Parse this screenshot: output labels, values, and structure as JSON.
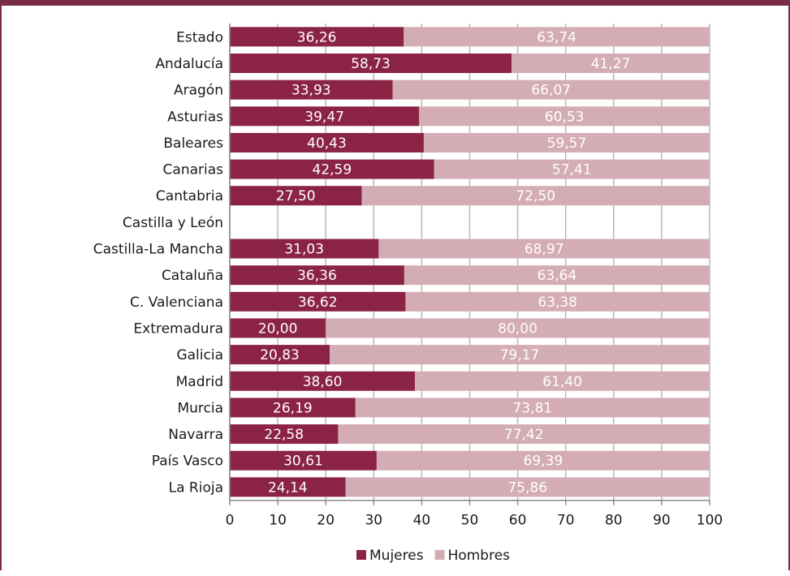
{
  "chart_data": {
    "type": "bar",
    "orientation": "horizontal",
    "stacked": true,
    "categories": [
      "Estado",
      "Andalucía",
      "Aragón",
      "Asturias",
      "Baleares",
      "Canarias",
      "Cantabria",
      "Castilla y León",
      "Castilla-La Mancha",
      "Cataluña",
      "C. Valenciana",
      "Extremadura",
      "Galicia",
      "Madrid",
      "Murcia",
      "Navarra",
      "País Vasco",
      "La Rioja"
    ],
    "series": [
      {
        "name": "Mujeres",
        "color": "#8b2346",
        "values": [
          36.26,
          58.73,
          33.93,
          39.47,
          40.43,
          42.59,
          27.5,
          null,
          31.03,
          36.36,
          36.62,
          20.0,
          20.83,
          38.6,
          26.19,
          22.58,
          30.61,
          24.14
        ],
        "labels": [
          "36,26",
          "58,73",
          "33,93",
          "39,47",
          "40,43",
          "42,59",
          "27,50",
          "",
          "31,03",
          "36,36",
          "36,62",
          "20,00",
          "20,83",
          "38,60",
          "26,19",
          "22,58",
          "30,61",
          "24,14"
        ]
      },
      {
        "name": "Hombres",
        "color": "#d3adb3",
        "values": [
          63.74,
          41.27,
          66.07,
          60.53,
          59.57,
          57.41,
          72.5,
          null,
          68.97,
          63.64,
          63.38,
          80.0,
          79.17,
          61.4,
          73.81,
          77.42,
          69.39,
          75.86
        ],
        "labels": [
          "63,74",
          "41,27",
          "66,07",
          "60,53",
          "59,57",
          "57,41",
          "72,50",
          "",
          "68,97",
          "63,64",
          "63,38",
          "80,00",
          "79,17",
          "61,40",
          "73,81",
          "77,42",
          "69,39",
          "75,86"
        ]
      }
    ],
    "xlim": [
      0,
      100
    ],
    "xticks": [
      "0",
      "10",
      "20",
      "30",
      "40",
      "50",
      "60",
      "70",
      "80",
      "90",
      "100"
    ],
    "grid": true,
    "legend": "bottom"
  }
}
